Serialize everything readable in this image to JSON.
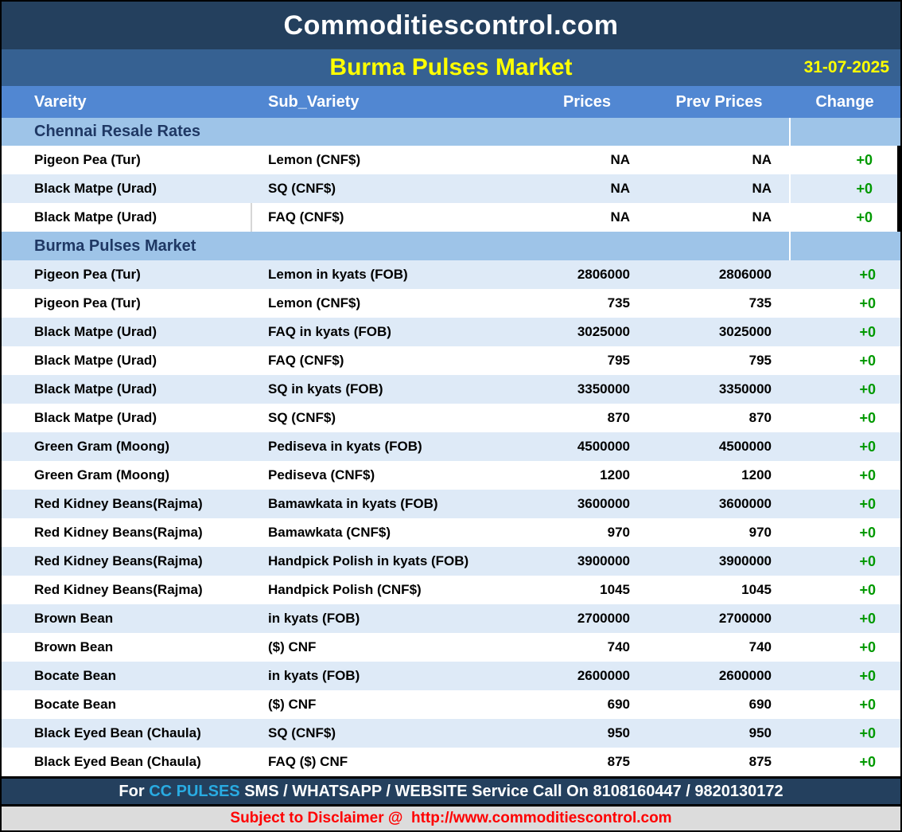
{
  "header": {
    "site_title": "Commoditiescontrol.com",
    "report_title": "Burma Pulses Market",
    "date": "31-07-2025"
  },
  "table": {
    "columns": [
      "Vareity",
      "Sub_Variety",
      "Prices",
      "Prev Prices",
      "Change"
    ],
    "sections": [
      {
        "title": "Chennai Resale Rates",
        "first_row_shaded": false,
        "rows": [
          {
            "variety": "Pigeon Pea (Tur)",
            "sub_variety": "Lemon (CNF$)",
            "price": "NA",
            "prev_price": "NA",
            "change": "+0"
          },
          {
            "variety": "Black Matpe (Urad)",
            "sub_variety": "SQ (CNF$)",
            "price": "NA",
            "prev_price": "NA",
            "change": "+0"
          },
          {
            "variety": "Black Matpe (Urad)",
            "sub_variety": "FAQ (CNF$)",
            "price": "NA",
            "prev_price": "NA",
            "change": "+0"
          }
        ]
      },
      {
        "title": "Burma Pulses Market",
        "first_row_shaded": true,
        "rows": [
          {
            "variety": "Pigeon Pea (Tur)",
            "sub_variety": "Lemon in kyats (FOB)",
            "price": "2806000",
            "prev_price": "2806000",
            "change": "+0"
          },
          {
            "variety": "Pigeon Pea (Tur)",
            "sub_variety": "Lemon (CNF$)",
            "price": "735",
            "prev_price": "735",
            "change": "+0"
          },
          {
            "variety": "Black Matpe (Urad)",
            "sub_variety": "FAQ in kyats (FOB)",
            "price": "3025000",
            "prev_price": "3025000",
            "change": "+0"
          },
          {
            "variety": "Black Matpe (Urad)",
            "sub_variety": "FAQ (CNF$)",
            "price": "795",
            "prev_price": "795",
            "change": "+0"
          },
          {
            "variety": "Black Matpe (Urad)",
            "sub_variety": "SQ in kyats (FOB)",
            "price": "3350000",
            "prev_price": "3350000",
            "change": "+0"
          },
          {
            "variety": "Black Matpe (Urad)",
            "sub_variety": "SQ (CNF$)",
            "price": "870",
            "prev_price": "870",
            "change": "+0"
          },
          {
            "variety": "Green Gram (Moong)",
            "sub_variety": "Pediseva in kyats (FOB)",
            "price": "4500000",
            "prev_price": "4500000",
            "change": "+0"
          },
          {
            "variety": "Green Gram (Moong)",
            "sub_variety": "Pediseva (CNF$)",
            "price": "1200",
            "prev_price": "1200",
            "change": "+0"
          },
          {
            "variety": "Red Kidney Beans(Rajma)",
            "sub_variety": "Bamawkata in kyats (FOB)",
            "price": "3600000",
            "prev_price": "3600000",
            "change": "+0"
          },
          {
            "variety": "Red Kidney Beans(Rajma)",
            "sub_variety": "Bamawkata (CNF$)",
            "price": "970",
            "prev_price": "970",
            "change": "+0"
          },
          {
            "variety": "Red Kidney Beans(Rajma)",
            "sub_variety": "Handpick Polish in kyats (FOB)",
            "price": "3900000",
            "prev_price": "3900000",
            "change": "+0"
          },
          {
            "variety": "Red Kidney Beans(Rajma)",
            "sub_variety": "Handpick Polish (CNF$)",
            "price": "1045",
            "prev_price": "1045",
            "change": "+0"
          },
          {
            "variety": "Brown Bean",
            "sub_variety": "in kyats (FOB)",
            "price": "2700000",
            "prev_price": "2700000",
            "change": "+0"
          },
          {
            "variety": "Brown Bean",
            "sub_variety": "($) CNF",
            "price": "740",
            "prev_price": "740",
            "change": "+0"
          },
          {
            "variety": "Bocate Bean",
            "sub_variety": "in kyats (FOB)",
            "price": "2600000",
            "prev_price": "2600000",
            "change": "+0"
          },
          {
            "variety": "Bocate Bean",
            "sub_variety": "($) CNF",
            "price": "690",
            "prev_price": "690",
            "change": "+0"
          },
          {
            "variety": "Black Eyed Bean (Chaula)",
            "sub_variety": "SQ (CNF$)",
            "price": "950",
            "prev_price": "950",
            "change": "+0"
          },
          {
            "variety": "Black Eyed Bean (Chaula)",
            "sub_variety": "FAQ ($) CNF",
            "price": "875",
            "prev_price": "875",
            "change": "+0"
          }
        ]
      }
    ]
  },
  "footer": {
    "service_prefix": "For",
    "service_brand": "CC PULSES",
    "service_rest": "SMS / WHATSAPP / WEBSITE Service Call On 8108160447 / 9820130172",
    "disclaimer": "Subject to Disclaimer @  http://www.commoditiescontrol.com"
  },
  "colors": {
    "title_bar": "#24405E",
    "subheader_bar": "#366192",
    "column_header": "#5187D2",
    "section_header_bg": "#9EC4E8",
    "section_header_text": "#1F3864",
    "row_shaded": "#DEEAF7",
    "change_green": "#009900",
    "accent_cyan": "#29ABE2",
    "date_yellow": "#FFFF00",
    "disclaimer_red": "#FF0000",
    "disclaimer_bg": "#DCDCDC"
  }
}
